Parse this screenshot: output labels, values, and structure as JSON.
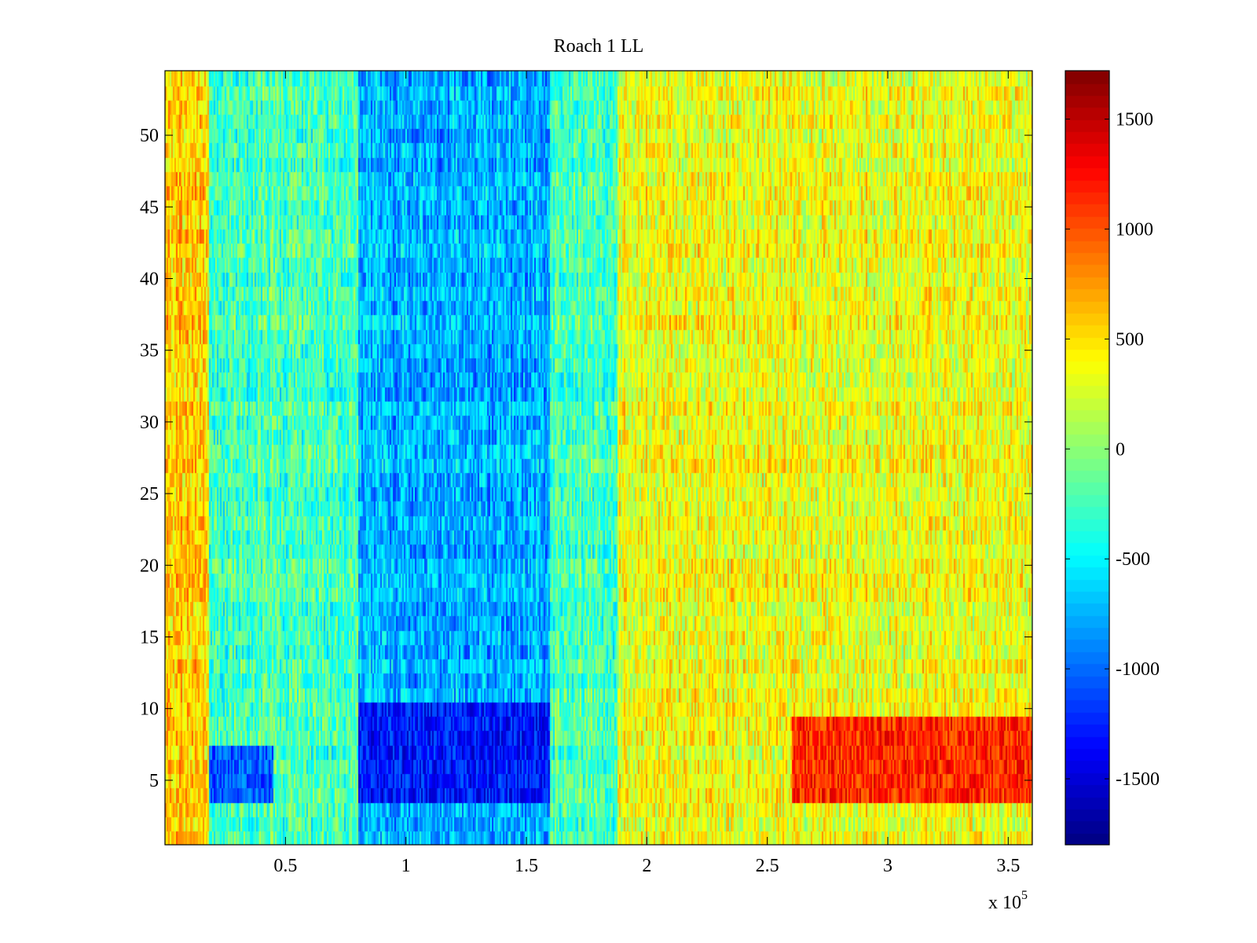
{
  "chart_data": {
    "type": "heatmap",
    "title": "Roach 1 LL",
    "xlabel": "",
    "ylabel": "",
    "x_exponent_label": "x 10",
    "x_exponent_power": "5",
    "xlim": [
      0,
      360000
    ],
    "ylim": [
      0.5,
      54.5
    ],
    "x_ticks": [
      {
        "value": 50000,
        "label": "0.5"
      },
      {
        "value": 100000,
        "label": "1"
      },
      {
        "value": 150000,
        "label": "1.5"
      },
      {
        "value": 200000,
        "label": "2"
      },
      {
        "value": 250000,
        "label": "2.5"
      },
      {
        "value": 300000,
        "label": "3"
      },
      {
        "value": 350000,
        "label": "3.5"
      }
    ],
    "y_ticks": [
      {
        "value": 5,
        "label": "5"
      },
      {
        "value": 10,
        "label": "10"
      },
      {
        "value": 15,
        "label": "15"
      },
      {
        "value": 20,
        "label": "20"
      },
      {
        "value": 25,
        "label": "25"
      },
      {
        "value": 30,
        "label": "30"
      },
      {
        "value": 35,
        "label": "35"
      },
      {
        "value": 40,
        "label": "40"
      },
      {
        "value": 45,
        "label": "45"
      },
      {
        "value": 50,
        "label": "50"
      }
    ],
    "rows": 54,
    "colormap": "jet",
    "clim": [
      -1800,
      1720
    ],
    "colorbar_ticks": [
      {
        "value": 1500,
        "label": "1500"
      },
      {
        "value": 1000,
        "label": "1000"
      },
      {
        "value": 500,
        "label": "500"
      },
      {
        "value": 0,
        "label": "0"
      },
      {
        "value": -500,
        "label": "-500"
      },
      {
        "value": -1000,
        "label": "-1000"
      },
      {
        "value": -1500,
        "label": "-1500"
      }
    ],
    "segments": [
      {
        "x_start": 0,
        "x_end": 18000,
        "mean_value": 550
      },
      {
        "x_start": 18000,
        "x_end": 80000,
        "mean_value": -250
      },
      {
        "x_start": 80000,
        "x_end": 160000,
        "mean_value": -750
      },
      {
        "x_start": 160000,
        "x_end": 188000,
        "mean_value": -250
      },
      {
        "x_start": 188000,
        "x_end": 260000,
        "mean_value": 350
      },
      {
        "x_start": 260000,
        "x_end": 360000,
        "mean_value": 350
      }
    ],
    "hotspots": [
      {
        "x_start": 260000,
        "x_end": 360000,
        "y_start": 3.5,
        "y_end": 9.5,
        "value": 1150
      },
      {
        "x_start": 80000,
        "x_end": 160000,
        "y_start": 3.5,
        "y_end": 10.5,
        "value": -1300
      },
      {
        "x_start": 18000,
        "x_end": 45000,
        "y_start": 3.5,
        "y_end": 7.5,
        "value": -1050
      }
    ]
  }
}
